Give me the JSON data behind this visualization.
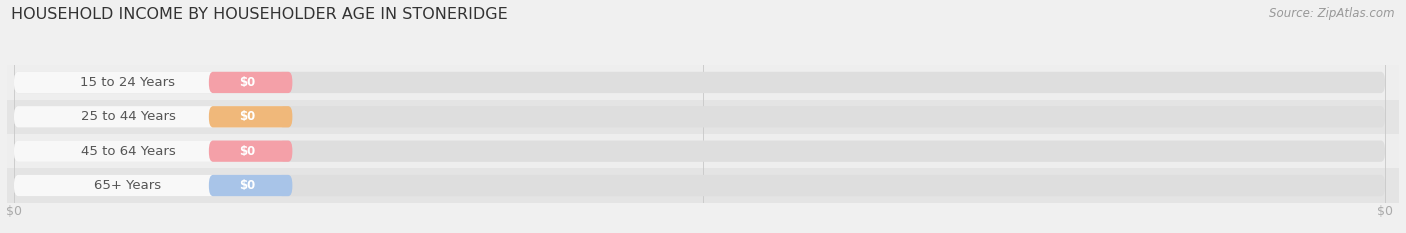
{
  "title": "HOUSEHOLD INCOME BY HOUSEHOLDER AGE IN STONERIDGE",
  "source": "Source: ZipAtlas.com",
  "categories": [
    "15 to 24 Years",
    "25 to 44 Years",
    "45 to 64 Years",
    "65+ Years"
  ],
  "values": [
    0,
    0,
    0,
    0
  ],
  "bar_colors": [
    "#f4a0a8",
    "#f0b87a",
    "#f4a0a8",
    "#a8c4e8"
  ],
  "value_labels": [
    "$0",
    "$0",
    "$0",
    "$0"
  ],
  "x_tick_labels": [
    "$0",
    "$0"
  ],
  "fig_bg_color": "#f0f0f0",
  "row_bg_odd": "#eeeeee",
  "row_bg_even": "#e4e4e4",
  "track_color": "#dedede",
  "label_bg_color": "#f8f8f8",
  "title_color": "#333333",
  "source_color": "#999999",
  "label_color": "#555555",
  "tick_color": "#aaaaaa",
  "grid_color": "#cccccc",
  "title_fontsize": 11.5,
  "source_fontsize": 8.5,
  "label_fontsize": 9.5,
  "value_fontsize": 8.5,
  "tick_fontsize": 9
}
